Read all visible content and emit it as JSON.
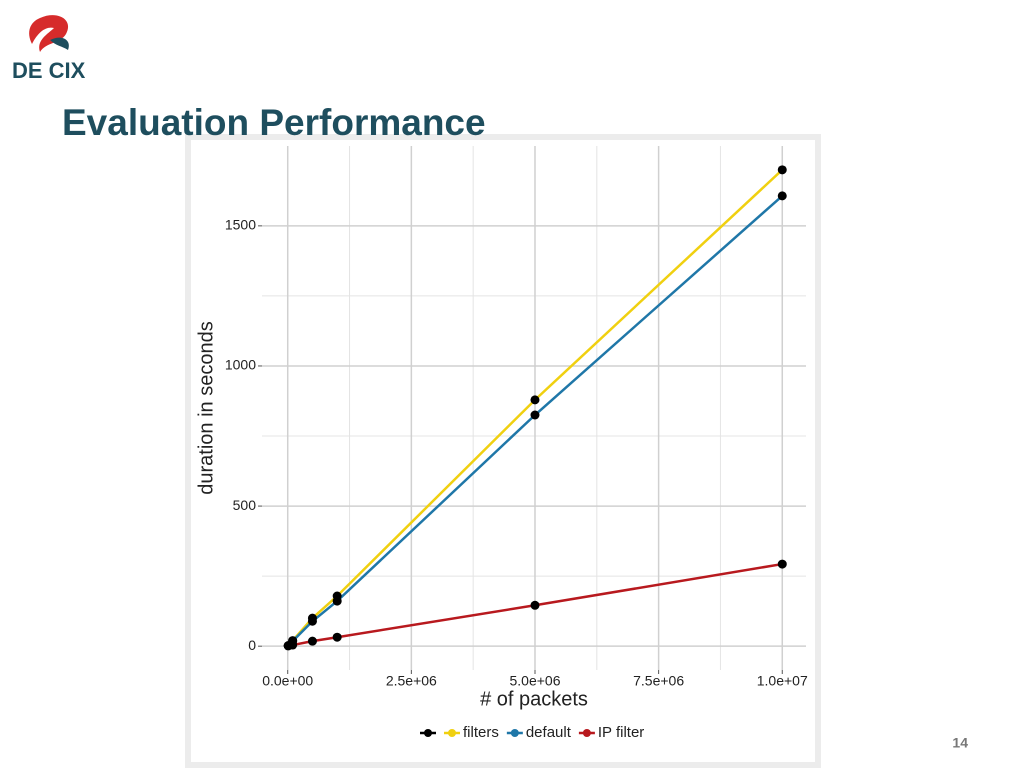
{
  "header": {
    "logo_text": "DE CIX",
    "title": "Evaluation Performance"
  },
  "page_number": "14",
  "chart_data": {
    "type": "line",
    "x_label": "# of packets",
    "y_label": "duration in seconds",
    "x": [
      10000,
      100000,
      500000,
      1000000,
      5000000,
      10000000
    ],
    "series": [
      {
        "name": "filters",
        "color": "#f0d010",
        "values": [
          2,
          20,
          100,
          179,
          879,
          1700
        ]
      },
      {
        "name": "default",
        "color": "#1f77a8",
        "values": [
          2,
          18,
          89,
          161,
          825,
          1607
        ]
      },
      {
        "name": "IP filter",
        "color": "#b8191e",
        "values": [
          1,
          4,
          18,
          32,
          146,
          293
        ]
      }
    ],
    "point_color": "#000000",
    "xlim": [
      -520000,
      10480000
    ],
    "ylim": [
      -85,
      1785
    ],
    "xticks": [
      {
        "value": 0,
        "label": "0.0e+00"
      },
      {
        "value": 2500000,
        "label": "2.5e+06"
      },
      {
        "value": 5000000,
        "label": "5.0e+06"
      },
      {
        "value": 7500000,
        "label": "7.5e+06"
      },
      {
        "value": 10000000,
        "label": "1.0e+07"
      }
    ],
    "yticks": [
      0,
      500,
      1000,
      1500
    ],
    "minor_xticks": [
      1250000,
      3750000,
      6250000,
      8750000
    ],
    "minor_yticks": [
      250,
      750,
      1250
    ],
    "grid": true,
    "legend": "bottom"
  }
}
